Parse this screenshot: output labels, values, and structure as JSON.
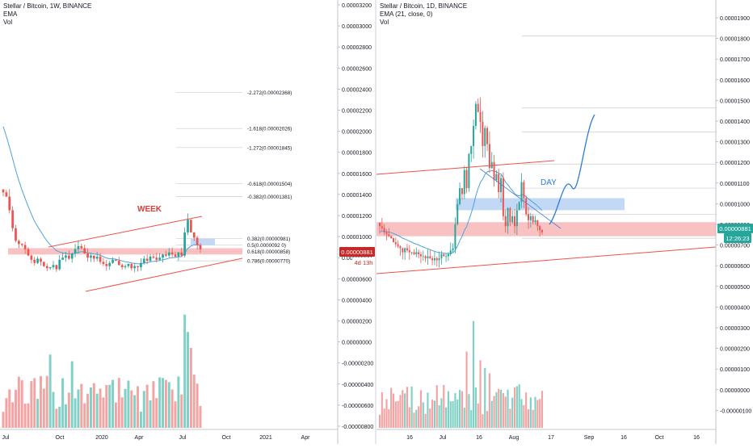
{
  "left": {
    "title": "Stellar / Bitcoin, 1W, BINANCE",
    "ind1": "EMA",
    "ind2": "Vol",
    "annotation": "WEEK",
    "price_badge": "0.00000881",
    "countdown_badge": "4d 13h",
    "fib_labels": [
      "-2.272(0.00002368)",
      "-1.618(0.00002026)",
      "-1.272(0.00001845)",
      "-0.618(0.00001504)",
      "-0.382(0.00001381)",
      "0.382(0.00000981)",
      "0.5(0.0000092 0)",
      "0.618(0.00000858)",
      "0.786(0.00000770)"
    ],
    "y_ticks": [
      "0.00003200",
      "0.00003000",
      "0.00002800",
      "0.00002600",
      "0.00002400",
      "0.00002200",
      "0.00002000",
      "0.00001800",
      "0.00001600",
      "0.00001400",
      "0.00001200",
      "0.00001000",
      "0.00000800",
      "0.00000600",
      "0.00000400",
      "0.00000200",
      "0.00000000",
      "-0.00000200",
      "-0.00000400",
      "-0.00000600",
      "-0.00000800"
    ],
    "x_ticks": [
      "Jul",
      "Oct",
      "2020",
      "Apr",
      "Jul",
      "Oct",
      "2021",
      "Apr"
    ]
  },
  "right": {
    "title": "Stellar / Bitcoin, 1D, BINANCE",
    "ind1": "EMA (21, close, 0)",
    "ind2": "Vol",
    "annotation": "DAY",
    "price_badge": "0.00000881",
    "countdown_badge": "12:26:23",
    "y_ticks": [
      "0.00001900",
      "0.00001800",
      "0.00001700",
      "0.00001600",
      "0.00001500",
      "0.00001400",
      "0.00001300",
      "0.00001200",
      "0.00001100",
      "0.00001000",
      "0.00000800",
      "0.00000700",
      "0.00000600",
      "0.00000500",
      "0.00000400",
      "0.00000300",
      "0.00000200",
      "0.00000100",
      "0.00000000",
      "-0.00000100"
    ],
    "x_ticks": [
      "16",
      "Jul",
      "16",
      "Aug",
      "17",
      "Sep",
      "16",
      "Oct",
      "16"
    ]
  },
  "colors": {
    "up": "#26a69a",
    "down": "#ef5350",
    "vol_up": "#7fd1c5",
    "vol_down": "#f4a3a3",
    "ema": "#4aa3df",
    "trend": "#f0504a",
    "zone_red": "#f7b7b7",
    "zone_blue": "#bcd4f4",
    "annotation_red": "#e53935",
    "annotation_blue": "#2b7bd6",
    "badge": "#c62828"
  },
  "chart_data": [
    {
      "type": "candlestick",
      "title": "Stellar / Bitcoin, 1W, BINANCE",
      "interval": "1W",
      "indicators": [
        "EMA",
        "Vol"
      ],
      "x_range": [
        "2019-06",
        "2021-05"
      ],
      "ylim": [
        -8e-06,
        3.2e-05
      ],
      "last_close": 8.81e-06,
      "annotation": "WEEK",
      "fibonacci": [
        {
          "ratio": -2.272,
          "price": 2.368e-05
        },
        {
          "ratio": -1.618,
          "price": 2.026e-05
        },
        {
          "ratio": -1.272,
          "price": 1.845e-05
        },
        {
          "ratio": -0.618,
          "price": 1.504e-05
        },
        {
          "ratio": -0.382,
          "price": 1.381e-05
        },
        {
          "ratio": 0.382,
          "price": 9.81e-06
        },
        {
          "ratio": 0.5,
          "price": 9.2e-06
        },
        {
          "ratio": 0.618,
          "price": 8.58e-06
        },
        {
          "ratio": 0.786,
          "price": 7.7e-06
        }
      ],
      "close": [
        1.42e-05,
        1.38e-05,
        1.25e-05,
        1.08e-05,
        9.6e-06,
        9.3e-06,
        9.2e-06,
        8.8e-06,
        8.2e-06,
        7.8e-06,
        7.5e-06,
        7.9e-06,
        7.6e-06,
        7.2e-06,
        7e-06,
        7.1e-06,
        7.3e-06,
        6.9e-06,
        7.8e-06,
        8e-06,
        8.2e-06,
        7.9e-06,
        8.4e-06,
        8.8e-06,
        9.1e-06,
        8.9e-06,
        8.4e-06,
        8e-06,
        8.2e-06,
        7.9e-06,
        8.1e-06,
        7.6e-06,
        7.4e-06,
        7.2e-06,
        7.5e-06,
        7.8e-06,
        7.7e-06,
        7.3e-06,
        7.1e-06,
        7.2e-06,
        7.4e-06,
        7e-06,
        7.2e-06,
        7.1e-06,
        7.5e-06,
        7.9e-06,
        7.7e-06,
        8.1e-06,
        8e-06,
        7.8e-06,
        8e-06,
        8.3e-06,
        8.2e-06,
        8.5e-06,
        8.3e-06,
        8.1e-06,
        8.5e-06,
        8.2e-06,
        1.04e-05,
        1.16e-05,
        1.04e-05,
        9.9e-06,
        9.2e-06,
        8.8e-06
      ]
    },
    {
      "type": "candlestick",
      "title": "Stellar / Bitcoin, 1D, BINANCE",
      "interval": "1D",
      "indicators": [
        "EMA (21, close, 0)",
        "Vol"
      ],
      "x_range": [
        "2020-06-07",
        "2020-10-22"
      ],
      "ylim": [
        -1e-06,
        1.95e-05
      ],
      "last_close": 8.81e-06,
      "annotation": "DAY",
      "close": [
        9.1e-06,
        9e-06,
        8.8e-06,
        8.7e-06,
        8.6e-06,
        8.5e-06,
        8.3e-06,
        8.2e-06,
        8.1e-06,
        8e-06,
        7.8e-06,
        8e-06,
        7.9e-06,
        7.8e-06,
        7.8e-06,
        7.7e-06,
        7.8e-06,
        7.7e-06,
        7.6e-06,
        7.6e-06,
        7.5e-06,
        7.6e-06,
        7.5e-06,
        7.4e-06,
        7.5e-06,
        7.4e-06,
        7.5e-06,
        7.7e-06,
        7.6e-06,
        7.6e-06,
        7.7e-06,
        7.9e-06,
        8e-06,
        9.2e-06,
        1.02e-05,
        1.1e-05,
        1.07e-05,
        1.19e-05,
        1.1e-05,
        1.27e-05,
        1.31e-05,
        1.41e-05,
        1.52e-05,
        1.48e-05,
        1.43e-05,
        1.31e-05,
        1.4e-05,
        1.32e-05,
        1.2e-05,
        1.23e-05,
        1.14e-05,
        1.17e-05,
        1.08e-05,
        1.15e-05,
        9.6e-06,
        9.1e-06,
        1e-05,
        9.3e-06,
        9.6e-06,
        9.1e-06,
        9.9e-06,
        1.03e-05,
        1.13e-05,
        1.05e-05,
        9.7e-06,
        9.4e-06,
        9.6e-06,
        9.3e-06,
        9.4e-06,
        9.1e-06,
        8.9e-06,
        8.8e-06
      ]
    }
  ]
}
